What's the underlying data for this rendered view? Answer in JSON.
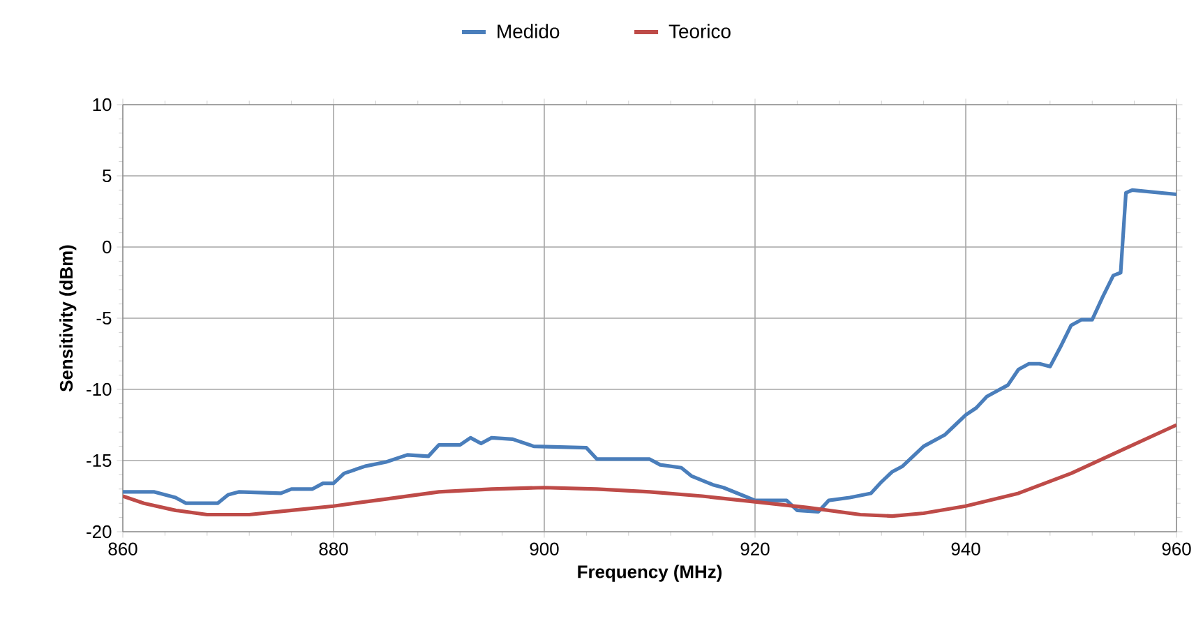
{
  "chart_data": {
    "type": "line",
    "xlabel": "Frequency (MHz)",
    "ylabel": "Sensitivity (dBm)",
    "xlim": [
      860,
      960
    ],
    "ylim": [
      -20,
      10
    ],
    "xticks": [
      860,
      880,
      900,
      920,
      940,
      960
    ],
    "yticks": [
      -20,
      -15,
      -10,
      -5,
      0,
      5,
      10
    ],
    "grid": true,
    "legend": "top",
    "marker": "none",
    "line_style": "solid",
    "series": [
      {
        "name": "Medido",
        "color": "#4a7ebb",
        "x": [
          860,
          863,
          865,
          866,
          869,
          870,
          871,
          875,
          876,
          878,
          879,
          880,
          881,
          883,
          885,
          887,
          889,
          890,
          892,
          893,
          894,
          895,
          897,
          899,
          904,
          905,
          910,
          911,
          913,
          914,
          916,
          917,
          919,
          920,
          923,
          924,
          926,
          927,
          929,
          931,
          932,
          933,
          934,
          936,
          938,
          939,
          940,
          941,
          942,
          943,
          944,
          945,
          946,
          947,
          948,
          949,
          950,
          951,
          952,
          953,
          954,
          954.7,
          955.2,
          955.8,
          960
        ],
        "values": [
          -17.2,
          -17.2,
          -17.6,
          -18,
          -18,
          -17.4,
          -17.2,
          -17.3,
          -17,
          -17,
          -16.6,
          -16.6,
          -15.9,
          -15.4,
          -15.1,
          -14.6,
          -14.7,
          -13.9,
          -13.9,
          -13.4,
          -13.8,
          -13.4,
          -13.5,
          -14,
          -14.1,
          -14.9,
          -14.9,
          -15.3,
          -15.5,
          -16.1,
          -16.7,
          -16.9,
          -17.5,
          -17.8,
          -17.8,
          -18.5,
          -18.6,
          -17.8,
          -17.6,
          -17.3,
          -16.5,
          -15.8,
          -15.4,
          -14,
          -13.2,
          -12.5,
          -11.8,
          -11.3,
          -10.5,
          -10.1,
          -9.7,
          -8.6,
          -8.2,
          -8.2,
          -8.4,
          -7,
          -5.5,
          -5.1,
          -5.1,
          -3.5,
          -2,
          -1.8,
          3.8,
          4,
          3.7
        ]
      },
      {
        "name": "Teorico",
        "color": "#be4b48",
        "x": [
          860,
          862,
          865,
          868,
          872,
          876,
          880,
          885,
          890,
          895,
          900,
          905,
          910,
          915,
          920,
          925,
          930,
          933,
          936,
          940,
          945,
          950,
          955,
          960
        ],
        "values": [
          -17.5,
          -18,
          -18.5,
          -18.8,
          -18.8,
          -18.5,
          -18.2,
          -17.7,
          -17.2,
          -17,
          -16.9,
          -17,
          -17.2,
          -17.5,
          -17.9,
          -18.3,
          -18.8,
          -18.9,
          -18.7,
          -18.2,
          -17.3,
          -15.9,
          -14.2,
          -12.5
        ]
      }
    ]
  }
}
